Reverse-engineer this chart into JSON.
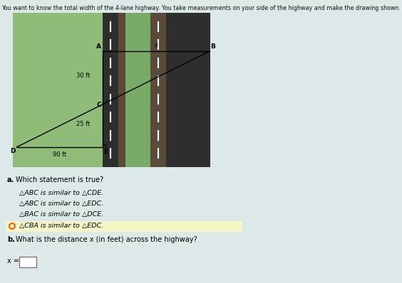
{
  "title": "You want to know the total width of the 4-lane highway. You take measurements on your side of the highway and make the drawing shown.",
  "bg_color": "#dde8e8",
  "diagram": {
    "green_bg": "#8fbc78",
    "road_dark1": "#2e2e2e",
    "road_sep1": "#5a4a3a",
    "road_green_mid": "#7aaa68",
    "road_dark2": "#2e2e2e",
    "road_sep2": "#5a4a3a",
    "label_30ft": "30 ft",
    "label_25ft": "25 ft",
    "label_90ft": "90 ft",
    "label_x": "x"
  },
  "question_a": {
    "label": "a.",
    "text": "Which statement is true?",
    "options": [
      {
        "text": "△ABC is similar to △CDE.",
        "selected": false
      },
      {
        "text": "△ABC is similar to △EDC.",
        "selected": false
      },
      {
        "text": "△BAC is similar to △DCE.",
        "selected": false
      },
      {
        "text": "△CBA is similar to △EDC.",
        "selected": true
      }
    ]
  },
  "question_b": {
    "label": "b.",
    "text": "What is the distance x (in feet) across the highway?"
  },
  "highlight_color": "#f5f5c8",
  "selected_dot_color": "#e07820",
  "unselected_dot_color": "#888888"
}
